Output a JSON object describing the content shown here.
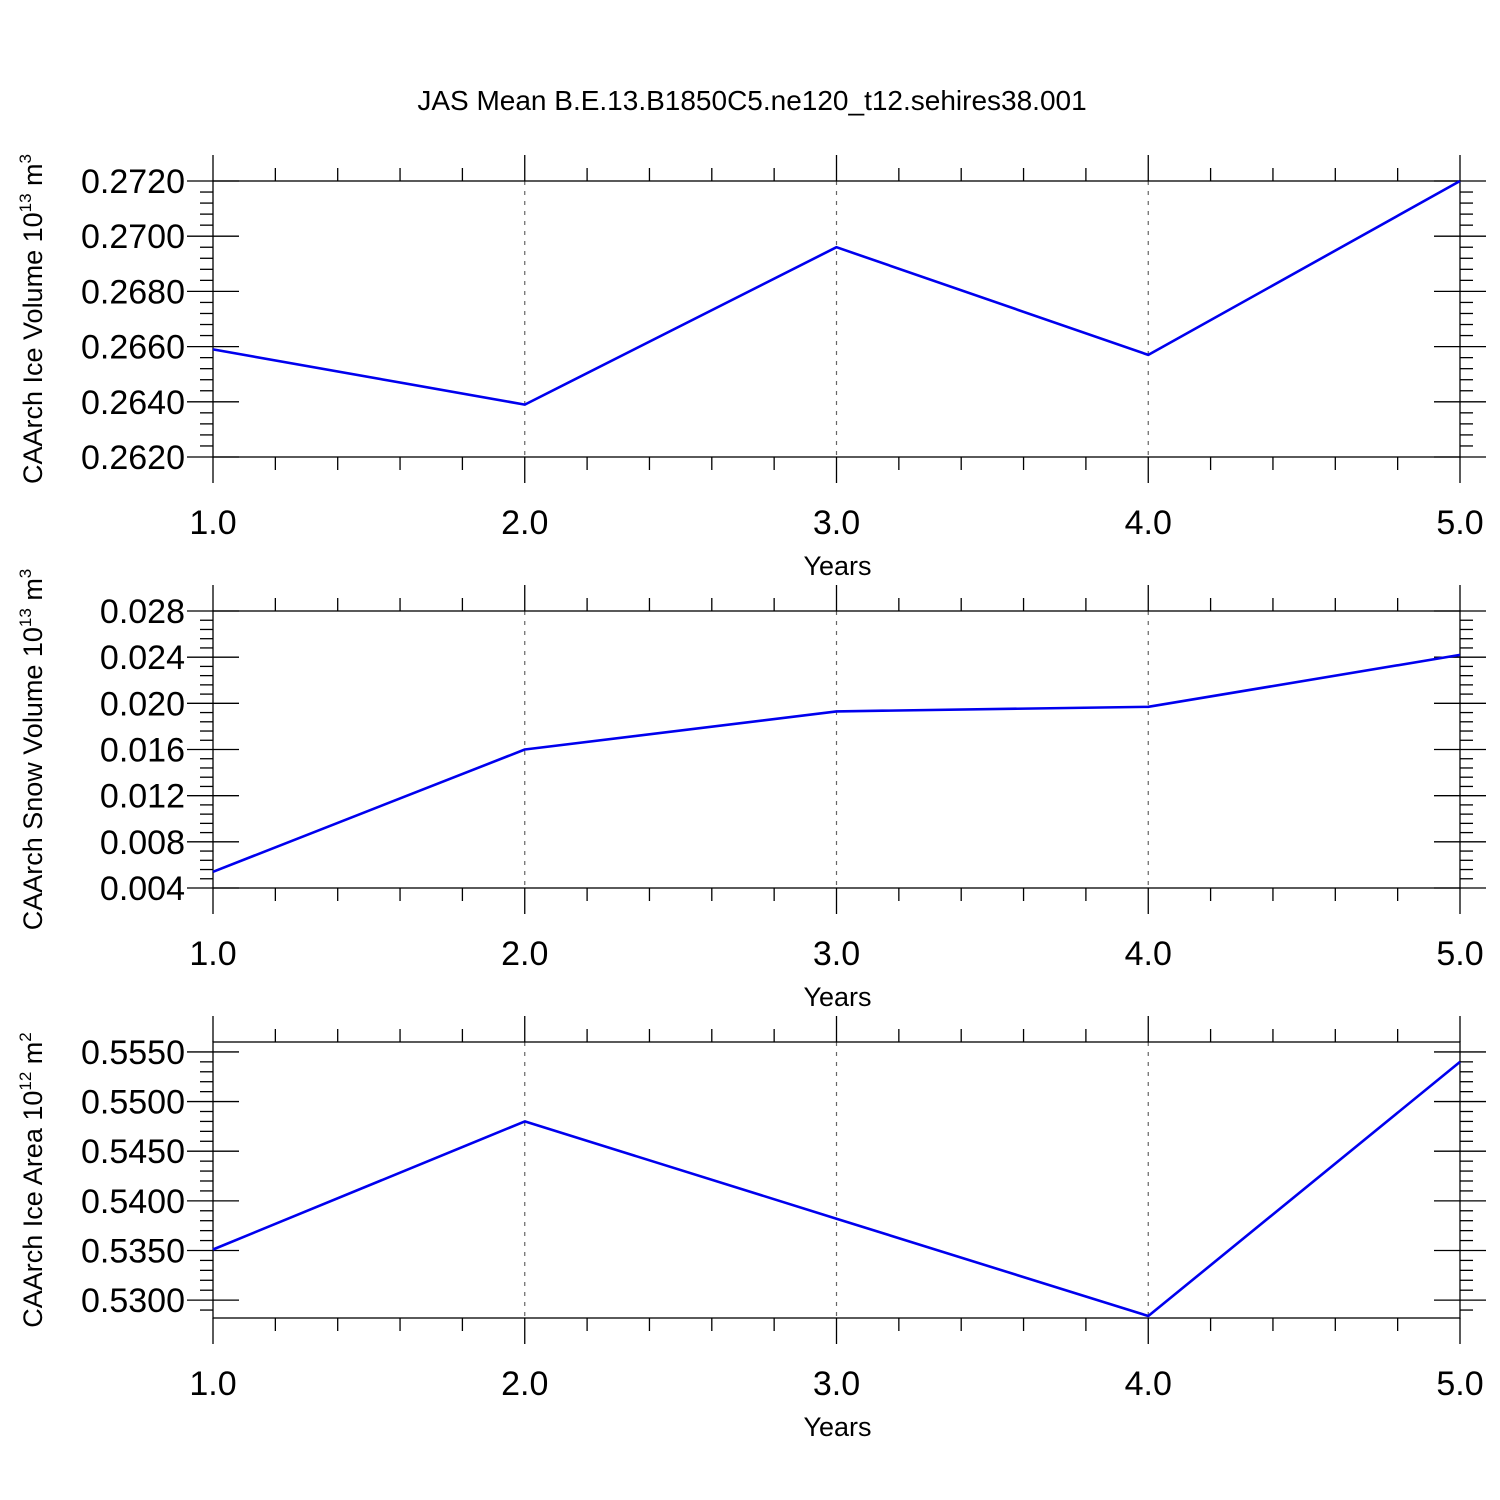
{
  "title": "JAS Mean B.E.13.B1850C5.ne120_t12.sehires38.001",
  "colors": {
    "line": "#0000ee",
    "grid": "#666666",
    "axis": "#000000"
  },
  "chart_data": [
    {
      "type": "line",
      "title": "",
      "xlabel": "Years",
      "ylabel": {
        "main": "CAArch Ice Volume 10",
        "exp": "13",
        "unit": " m",
        "unit_exp": "3"
      },
      "x": [
        1,
        2,
        3,
        4,
        5
      ],
      "xlim": [
        1,
        5
      ],
      "xticks": [
        "1.0",
        "2.0",
        "3.0",
        "4.0",
        "5.0"
      ],
      "ylim": [
        0.262,
        0.272
      ],
      "yticks": [
        "0.2620",
        "0.2640",
        "0.2660",
        "0.2680",
        "0.2700",
        "0.2720"
      ],
      "ytick_values": [
        0.262,
        0.264,
        0.266,
        0.268,
        0.27,
        0.272
      ],
      "grid": "vertical dashed at major x ticks",
      "series": [
        {
          "values": [
            0.2659,
            0.2639,
            0.2696,
            0.2657,
            0.272
          ]
        }
      ]
    },
    {
      "type": "line",
      "title": "",
      "xlabel": "Years",
      "ylabel": {
        "main": "CAArch Snow Volume 10",
        "exp": "13",
        "unit": " m",
        "unit_exp": "3"
      },
      "x": [
        1,
        2,
        3,
        4,
        5
      ],
      "xlim": [
        1,
        5
      ],
      "xticks": [
        "1.0",
        "2.0",
        "3.0",
        "4.0",
        "5.0"
      ],
      "ylim": [
        0.004,
        0.028
      ],
      "yticks": [
        "0.004",
        "0.008",
        "0.012",
        "0.016",
        "0.020",
        "0.024",
        "0.028"
      ],
      "ytick_values": [
        0.004,
        0.008,
        0.012,
        0.016,
        0.02,
        0.024,
        0.028
      ],
      "grid": "vertical dashed at major x ticks",
      "series": [
        {
          "values": [
            0.0054,
            0.016,
            0.0193,
            0.0197,
            0.0242
          ]
        }
      ]
    },
    {
      "type": "line",
      "title": "",
      "xlabel": "Years",
      "ylabel": {
        "main": "CAArch Ice Area 10",
        "exp": "12",
        "unit": " m",
        "unit_exp": "2"
      },
      "x": [
        1,
        2,
        3,
        4,
        5
      ],
      "xlim": [
        1,
        5
      ],
      "xticks": [
        "1.0",
        "2.0",
        "3.0",
        "4.0",
        "5.0"
      ],
      "ylim": [
        0.5282,
        0.556
      ],
      "yticks": [
        "0.5300",
        "0.5350",
        "0.5400",
        "0.5450",
        "0.5500",
        "0.5550"
      ],
      "ytick_values": [
        0.53,
        0.535,
        0.54,
        0.545,
        0.55,
        0.555
      ],
      "grid": "vertical dashed at major x ticks",
      "series": [
        {
          "values": [
            0.5351,
            0.548,
            0.5382,
            0.5284,
            0.554
          ]
        }
      ]
    }
  ]
}
